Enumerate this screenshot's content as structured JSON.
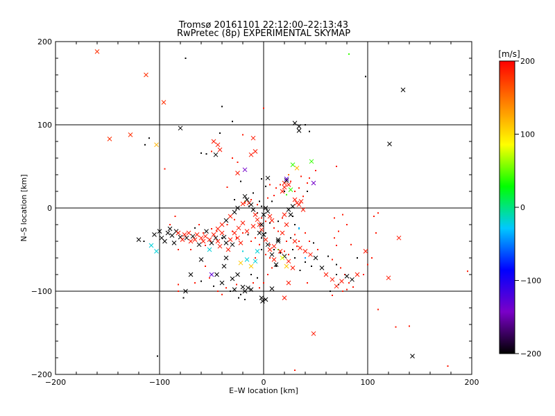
{
  "chart_data": {
    "type": "scatter",
    "title": "Tromsø 20161101 22:12:00–22:13:43",
    "subtitle": "RwPretec (8p) EXPERIMENTAL SKYMAP",
    "xlabel": "E–W location [km]",
    "ylabel": "N–S location [km]",
    "xlim": [
      -200,
      200
    ],
    "ylim": [
      -200,
      200
    ],
    "xticks": [
      "−200",
      "−100",
      "0",
      "100",
      "200"
    ],
    "yticks": [
      "−200",
      "−100",
      "0",
      "100",
      "200"
    ],
    "grid": true,
    "colorbar": {
      "label": "[m/s]",
      "range": [
        -200,
        200
      ],
      "ticks": [
        "−200",
        "−100",
        "0",
        "100",
        "200"
      ],
      "colors": [
        "#000000",
        "#7a00c8",
        "#0000ff",
        "#00c8ff",
        "#00ff00",
        "#ffff00",
        "#ff8000",
        "#ff0000"
      ]
    },
    "points_x": [
      [
        -160,
        188,
        180
      ],
      [
        -113,
        160,
        180
      ],
      [
        -96,
        127,
        180
      ],
      [
        -148,
        83,
        180
      ],
      [
        -128,
        88,
        180
      ],
      [
        -103,
        76,
        120
      ],
      [
        -120,
        -38,
        -200
      ],
      [
        -105,
        -32,
        -200
      ],
      [
        -100,
        -28,
        -200
      ],
      [
        -98,
        -36,
        -200
      ],
      [
        -95,
        -40,
        -200
      ],
      [
        -92,
        -30,
        -200
      ],
      [
        -90,
        -25,
        -200
      ],
      [
        -88,
        -33,
        -200
      ],
      [
        -86,
        -42,
        -200
      ],
      [
        -84,
        -28,
        -200
      ],
      [
        -80,
        -35,
        -200
      ],
      [
        -82,
        -30,
        190
      ],
      [
        -78,
        -38,
        190
      ],
      [
        -76,
        -32,
        190
      ],
      [
        -74,
        -36,
        -200
      ],
      [
        -72,
        -30,
        190
      ],
      [
        -70,
        -40,
        190
      ],
      [
        -68,
        -34,
        -200
      ],
      [
        -66,
        -38,
        190
      ],
      [
        -64,
        -32,
        190
      ],
      [
        -62,
        -44,
        -200
      ],
      [
        -60,
        -36,
        190
      ],
      [
        -58,
        -40,
        190
      ],
      [
        -56,
        -34,
        190
      ],
      [
        -55,
        -28,
        -200
      ],
      [
        -52,
        -38,
        190
      ],
      [
        -50,
        -42,
        -200
      ],
      [
        -48,
        -32,
        190
      ],
      [
        -46,
        -36,
        -200
      ],
      [
        -44,
        -40,
        190
      ],
      [
        -42,
        -46,
        190
      ],
      [
        -40,
        -30,
        190
      ],
      [
        -38,
        -35,
        -200
      ],
      [
        -36,
        -42,
        -200
      ],
      [
        -34,
        -50,
        190
      ],
      [
        -32,
        -38,
        190
      ],
      [
        -30,
        -44,
        -200
      ],
      [
        -28,
        -30,
        190
      ],
      [
        -25,
        -36,
        190
      ],
      [
        -22,
        -42,
        190
      ],
      [
        -108,
        -45,
        -20
      ],
      [
        -103,
        -52,
        -20
      ],
      [
        -52,
        -50,
        -20
      ],
      [
        -80,
        96,
        -200
      ],
      [
        -46,
        64,
        -200
      ],
      [
        -48,
        80,
        190
      ],
      [
        -44,
        76,
        190
      ],
      [
        -42,
        70,
        190
      ],
      [
        -25,
        42,
        190
      ],
      [
        -18,
        46,
        -140
      ],
      [
        -10,
        84,
        190
      ],
      [
        -8,
        68,
        190
      ],
      [
        -12,
        64,
        190
      ],
      [
        -18,
        14,
        -200
      ],
      [
        -16,
        10,
        -200
      ],
      [
        -14,
        6,
        190
      ],
      [
        -12,
        4,
        -200
      ],
      [
        -10,
        -2,
        -200
      ],
      [
        -8,
        -8,
        190
      ],
      [
        -6,
        -14,
        190
      ],
      [
        -4,
        -20,
        190
      ],
      [
        -2,
        -26,
        190
      ],
      [
        0,
        -32,
        -200
      ],
      [
        2,
        -38,
        190
      ],
      [
        4,
        -44,
        -200
      ],
      [
        6,
        -50,
        190
      ],
      [
        8,
        -56,
        -200
      ],
      [
        10,
        -62,
        190
      ],
      [
        12,
        -68,
        -200
      ],
      [
        -20,
        5,
        190
      ],
      [
        -25,
        0,
        -200
      ],
      [
        -28,
        -5,
        -200
      ],
      [
        -32,
        -10,
        190
      ],
      [
        -36,
        -15,
        -200
      ],
      [
        -40,
        -20,
        190
      ],
      [
        -44,
        -25,
        190
      ],
      [
        -36,
        -60,
        -200
      ],
      [
        -38,
        -70,
        -200
      ],
      [
        -45,
        -80,
        -200
      ],
      [
        -40,
        -90,
        -200
      ],
      [
        -30,
        -85,
        -200
      ],
      [
        -25,
        -80,
        -200
      ],
      [
        -20,
        -95,
        -200
      ],
      [
        -18,
        -100,
        -200
      ],
      [
        -15,
        -96,
        -200
      ],
      [
        -12,
        -98,
        -200
      ],
      [
        -60,
        -62,
        -200
      ],
      [
        -70,
        -80,
        -200
      ],
      [
        -75,
        -100,
        -200
      ],
      [
        -50,
        -80,
        -130
      ],
      [
        -28,
        -98,
        -200
      ],
      [
        -2,
        -108,
        -200
      ],
      [
        -1,
        -112,
        -200
      ],
      [
        2,
        -110,
        -200
      ],
      [
        8,
        -97,
        -200
      ],
      [
        20,
        30,
        190
      ],
      [
        22,
        33,
        -200
      ],
      [
        24,
        28,
        190
      ],
      [
        20,
        25,
        190
      ],
      [
        22,
        35,
        -130
      ],
      [
        18,
        20,
        190
      ],
      [
        26,
        22,
        40
      ],
      [
        28,
        52,
        40
      ],
      [
        32,
        48,
        120
      ],
      [
        46,
        56,
        40
      ],
      [
        48,
        30,
        -140
      ],
      [
        30,
        10,
        190
      ],
      [
        32,
        6,
        190
      ],
      [
        34,
        4,
        190
      ],
      [
        36,
        8,
        190
      ],
      [
        38,
        -2,
        190
      ],
      [
        26,
        -8,
        -200
      ],
      [
        22,
        -20,
        190
      ],
      [
        18,
        -30,
        190
      ],
      [
        14,
        -38,
        -200
      ],
      [
        10,
        -46,
        190
      ],
      [
        16,
        -52,
        190
      ],
      [
        20,
        -58,
        -200
      ],
      [
        24,
        -64,
        190
      ],
      [
        28,
        -72,
        190
      ],
      [
        22,
        -70,
        110
      ],
      [
        18,
        -60,
        80
      ],
      [
        30,
        -40,
        190
      ],
      [
        35,
        -48,
        190
      ],
      [
        40,
        -52,
        190
      ],
      [
        45,
        -56,
        190
      ],
      [
        50,
        -60,
        -200
      ],
      [
        56,
        -72,
        -200
      ],
      [
        60,
        -80,
        190
      ],
      [
        66,
        -86,
        190
      ],
      [
        70,
        -94,
        190
      ],
      [
        75,
        -88,
        190
      ],
      [
        80,
        -82,
        -200
      ],
      [
        85,
        -86,
        -200
      ],
      [
        90,
        -80,
        190
      ],
      [
        98,
        -52,
        190
      ],
      [
        120,
        -84,
        190
      ],
      [
        130,
        -36,
        190
      ],
      [
        134,
        142,
        -200
      ],
      [
        121,
        77,
        -200
      ],
      [
        143,
        -178,
        -200
      ],
      [
        48,
        -151,
        190
      ],
      [
        -4,
        -30,
        -200
      ],
      [
        -2,
        -20,
        -200
      ],
      [
        0,
        -8,
        -200
      ],
      [
        2,
        0,
        -200
      ],
      [
        4,
        -4,
        -200
      ],
      [
        6,
        -10,
        190
      ],
      [
        8,
        -15,
        190
      ],
      [
        -16,
        -62,
        -20
      ],
      [
        -8,
        -64,
        -20
      ],
      [
        -12,
        -70,
        110
      ],
      [
        -22,
        -66,
        110
      ],
      [
        14,
        -40,
        -200
      ],
      [
        20,
        -8,
        190
      ],
      [
        24,
        -2,
        -200
      ],
      [
        28,
        2,
        -200
      ],
      [
        4,
        36,
        -200
      ],
      [
        34,
        93,
        -200
      ],
      [
        30,
        102,
        -200
      ],
      [
        34,
        98,
        -200
      ],
      [
        -10,
        -22,
        190
      ],
      [
        -16,
        -28,
        190
      ],
      [
        -20,
        -18,
        190
      ],
      [
        -24,
        -24,
        190
      ],
      [
        -6,
        -52,
        -20
      ],
      [
        24,
        -90,
        190
      ],
      [
        20,
        -108,
        190
      ]
    ],
    "points_dot": [
      [
        -110,
        84,
        -200
      ],
      [
        -114,
        76,
        -200
      ],
      [
        -95,
        47,
        190
      ],
      [
        -75,
        180,
        -200
      ],
      [
        -40,
        122,
        -200
      ],
      [
        -30,
        104,
        -200
      ],
      [
        -20,
        88,
        190
      ],
      [
        0,
        120,
        190
      ],
      [
        -42,
        90,
        -200
      ],
      [
        -50,
        68,
        190
      ],
      [
        -55,
        65,
        -200
      ],
      [
        -60,
        66,
        -200
      ],
      [
        -30,
        60,
        190
      ],
      [
        -25,
        55,
        190
      ],
      [
        -22,
        32,
        -200
      ],
      [
        -35,
        25,
        190
      ],
      [
        -12,
        10,
        190
      ],
      [
        -18,
        6,
        190
      ],
      [
        -28,
        10,
        -200
      ],
      [
        -2,
        35,
        -200
      ],
      [
        2,
        26,
        -200
      ],
      [
        6,
        28,
        190
      ],
      [
        -10,
        18,
        -200
      ],
      [
        4,
        12,
        190
      ],
      [
        8,
        8,
        -200
      ],
      [
        10,
        15,
        190
      ],
      [
        12,
        24,
        190
      ],
      [
        16,
        28,
        190
      ],
      [
        20,
        20,
        -200
      ],
      [
        26,
        32,
        190
      ],
      [
        30,
        20,
        190
      ],
      [
        34,
        24,
        190
      ],
      [
        42,
        30,
        190
      ],
      [
        44,
        36,
        190
      ],
      [
        50,
        45,
        190
      ],
      [
        36,
        38,
        190
      ],
      [
        38,
        14,
        190
      ],
      [
        42,
        20,
        -200
      ],
      [
        24,
        40,
        150
      ],
      [
        22,
        16,
        40
      ],
      [
        28,
        -10,
        -200
      ],
      [
        30,
        -20,
        -200
      ],
      [
        34,
        -25,
        -20
      ],
      [
        40,
        -30,
        190
      ],
      [
        44,
        -40,
        190
      ],
      [
        48,
        -42,
        -200
      ],
      [
        52,
        -50,
        190
      ],
      [
        46,
        -70,
        -200
      ],
      [
        40,
        -65,
        -200
      ],
      [
        30,
        -60,
        -200
      ],
      [
        35,
        -75,
        -200
      ],
      [
        42,
        -90,
        190
      ],
      [
        62,
        -58,
        -200
      ],
      [
        66,
        -62,
        190
      ],
      [
        70,
        -68,
        -200
      ],
      [
        74,
        -72,
        190
      ],
      [
        78,
        -80,
        190
      ],
      [
        82,
        -90,
        190
      ],
      [
        86,
        -95,
        190
      ],
      [
        70,
        -80,
        -200
      ],
      [
        64,
        -100,
        -200
      ],
      [
        66,
        -105,
        190
      ],
      [
        76,
        -100,
        190
      ],
      [
        80,
        -98,
        190
      ],
      [
        72,
        -92,
        -200
      ],
      [
        96,
        -80,
        190
      ],
      [
        100,
        -68,
        190
      ],
      [
        104,
        -60,
        190
      ],
      [
        106,
        -10,
        190
      ],
      [
        108,
        -30,
        190
      ],
      [
        110,
        -6,
        190
      ],
      [
        80,
        -20,
        190
      ],
      [
        70,
        -45,
        190
      ],
      [
        68,
        -36,
        190
      ],
      [
        72,
        -28,
        190
      ],
      [
        68,
        -12,
        190
      ],
      [
        76,
        -8,
        190
      ],
      [
        84,
        -44,
        190
      ],
      [
        90,
        -60,
        -200
      ],
      [
        98,
        158,
        -200
      ],
      [
        82,
        185,
        40
      ],
      [
        70,
        50,
        190
      ],
      [
        44,
        92,
        -200
      ],
      [
        40,
        100,
        -200
      ],
      [
        110,
        -122,
        190
      ],
      [
        127,
        -143,
        190
      ],
      [
        140,
        -142,
        190
      ],
      [
        177,
        -190,
        190
      ],
      [
        196,
        -76,
        190
      ],
      [
        -77,
        -108,
        -200
      ],
      [
        -102,
        -178,
        -200
      ],
      [
        -115,
        -40,
        -200
      ],
      [
        -90,
        -20,
        190
      ],
      [
        -85,
        -10,
        190
      ],
      [
        -82,
        -50,
        190
      ],
      [
        -70,
        -50,
        190
      ],
      [
        -66,
        -24,
        -200
      ],
      [
        -62,
        -20,
        190
      ],
      [
        -58,
        -30,
        190
      ],
      [
        -56,
        -45,
        190
      ],
      [
        -50,
        -25,
        190
      ],
      [
        -45,
        -28,
        190
      ],
      [
        -40,
        -36,
        -200
      ],
      [
        -35,
        -20,
        190
      ],
      [
        -30,
        -28,
        190
      ],
      [
        -28,
        -14,
        190
      ],
      [
        -26,
        -36,
        190
      ],
      [
        -20,
        -30,
        190
      ],
      [
        -15,
        -32,
        -200
      ],
      [
        -12,
        -40,
        190
      ],
      [
        -8,
        -36,
        190
      ],
      [
        -4,
        -44,
        190
      ],
      [
        -2,
        -50,
        -200
      ],
      [
        2,
        -56,
        190
      ],
      [
        6,
        -60,
        190
      ],
      [
        -8,
        -60,
        190
      ],
      [
        -12,
        -80,
        -200
      ],
      [
        -10,
        -90,
        190
      ],
      [
        -6,
        -84,
        -200
      ],
      [
        -4,
        -96,
        190
      ],
      [
        0,
        -90,
        190
      ],
      [
        4,
        -80,
        190
      ],
      [
        8,
        -72,
        190
      ],
      [
        12,
        -70,
        -200
      ],
      [
        -22,
        -104,
        -200
      ],
      [
        -24,
        -108,
        -200
      ],
      [
        -18,
        -110,
        -200
      ],
      [
        -26,
        -92,
        190
      ],
      [
        -32,
        -100,
        -200
      ],
      [
        -36,
        -96,
        190
      ],
      [
        -40,
        -104,
        190
      ],
      [
        -44,
        -100,
        190
      ],
      [
        -48,
        -94,
        -200
      ],
      [
        -52,
        -84,
        190
      ],
      [
        -56,
        -70,
        190
      ],
      [
        -60,
        -88,
        -200
      ],
      [
        -66,
        -90,
        190
      ],
      [
        14,
        -50,
        40
      ],
      [
        16,
        -54,
        -200
      ],
      [
        20,
        -52,
        190
      ],
      [
        24,
        -56,
        190
      ],
      [
        28,
        -50,
        -200
      ],
      [
        32,
        -46,
        190
      ],
      [
        34,
        -40,
        190
      ],
      [
        22,
        -40,
        190
      ],
      [
        26,
        -36,
        -200
      ],
      [
        30,
        -32,
        190
      ],
      [
        14,
        -28,
        190
      ],
      [
        10,
        -24,
        190
      ],
      [
        6,
        -18,
        -200
      ],
      [
        2,
        -16,
        190
      ],
      [
        -2,
        -12,
        190
      ],
      [
        -6,
        -6,
        -200
      ],
      [
        -10,
        -2,
        190
      ],
      [
        -14,
        2,
        -200
      ],
      [
        -6,
        4,
        190
      ],
      [
        30,
        -195,
        190
      ],
      [
        34,
        -24,
        -40
      ],
      [
        40,
        -60,
        -40
      ],
      [
        -20,
        -52,
        -20
      ],
      [
        -18,
        8,
        140
      ],
      [
        -82,
        -100,
        190
      ],
      [
        -82,
        -92,
        190
      ],
      [
        2,
        -30,
        -200
      ],
      [
        -2,
        -36,
        -200
      ],
      [
        6,
        -44,
        190
      ],
      [
        10,
        -50,
        -200
      ],
      [
        14,
        -16,
        -200
      ],
      [
        18,
        -12,
        190
      ],
      [
        -2,
        2,
        -200
      ],
      [
        -4,
        8,
        -200
      ]
    ]
  }
}
